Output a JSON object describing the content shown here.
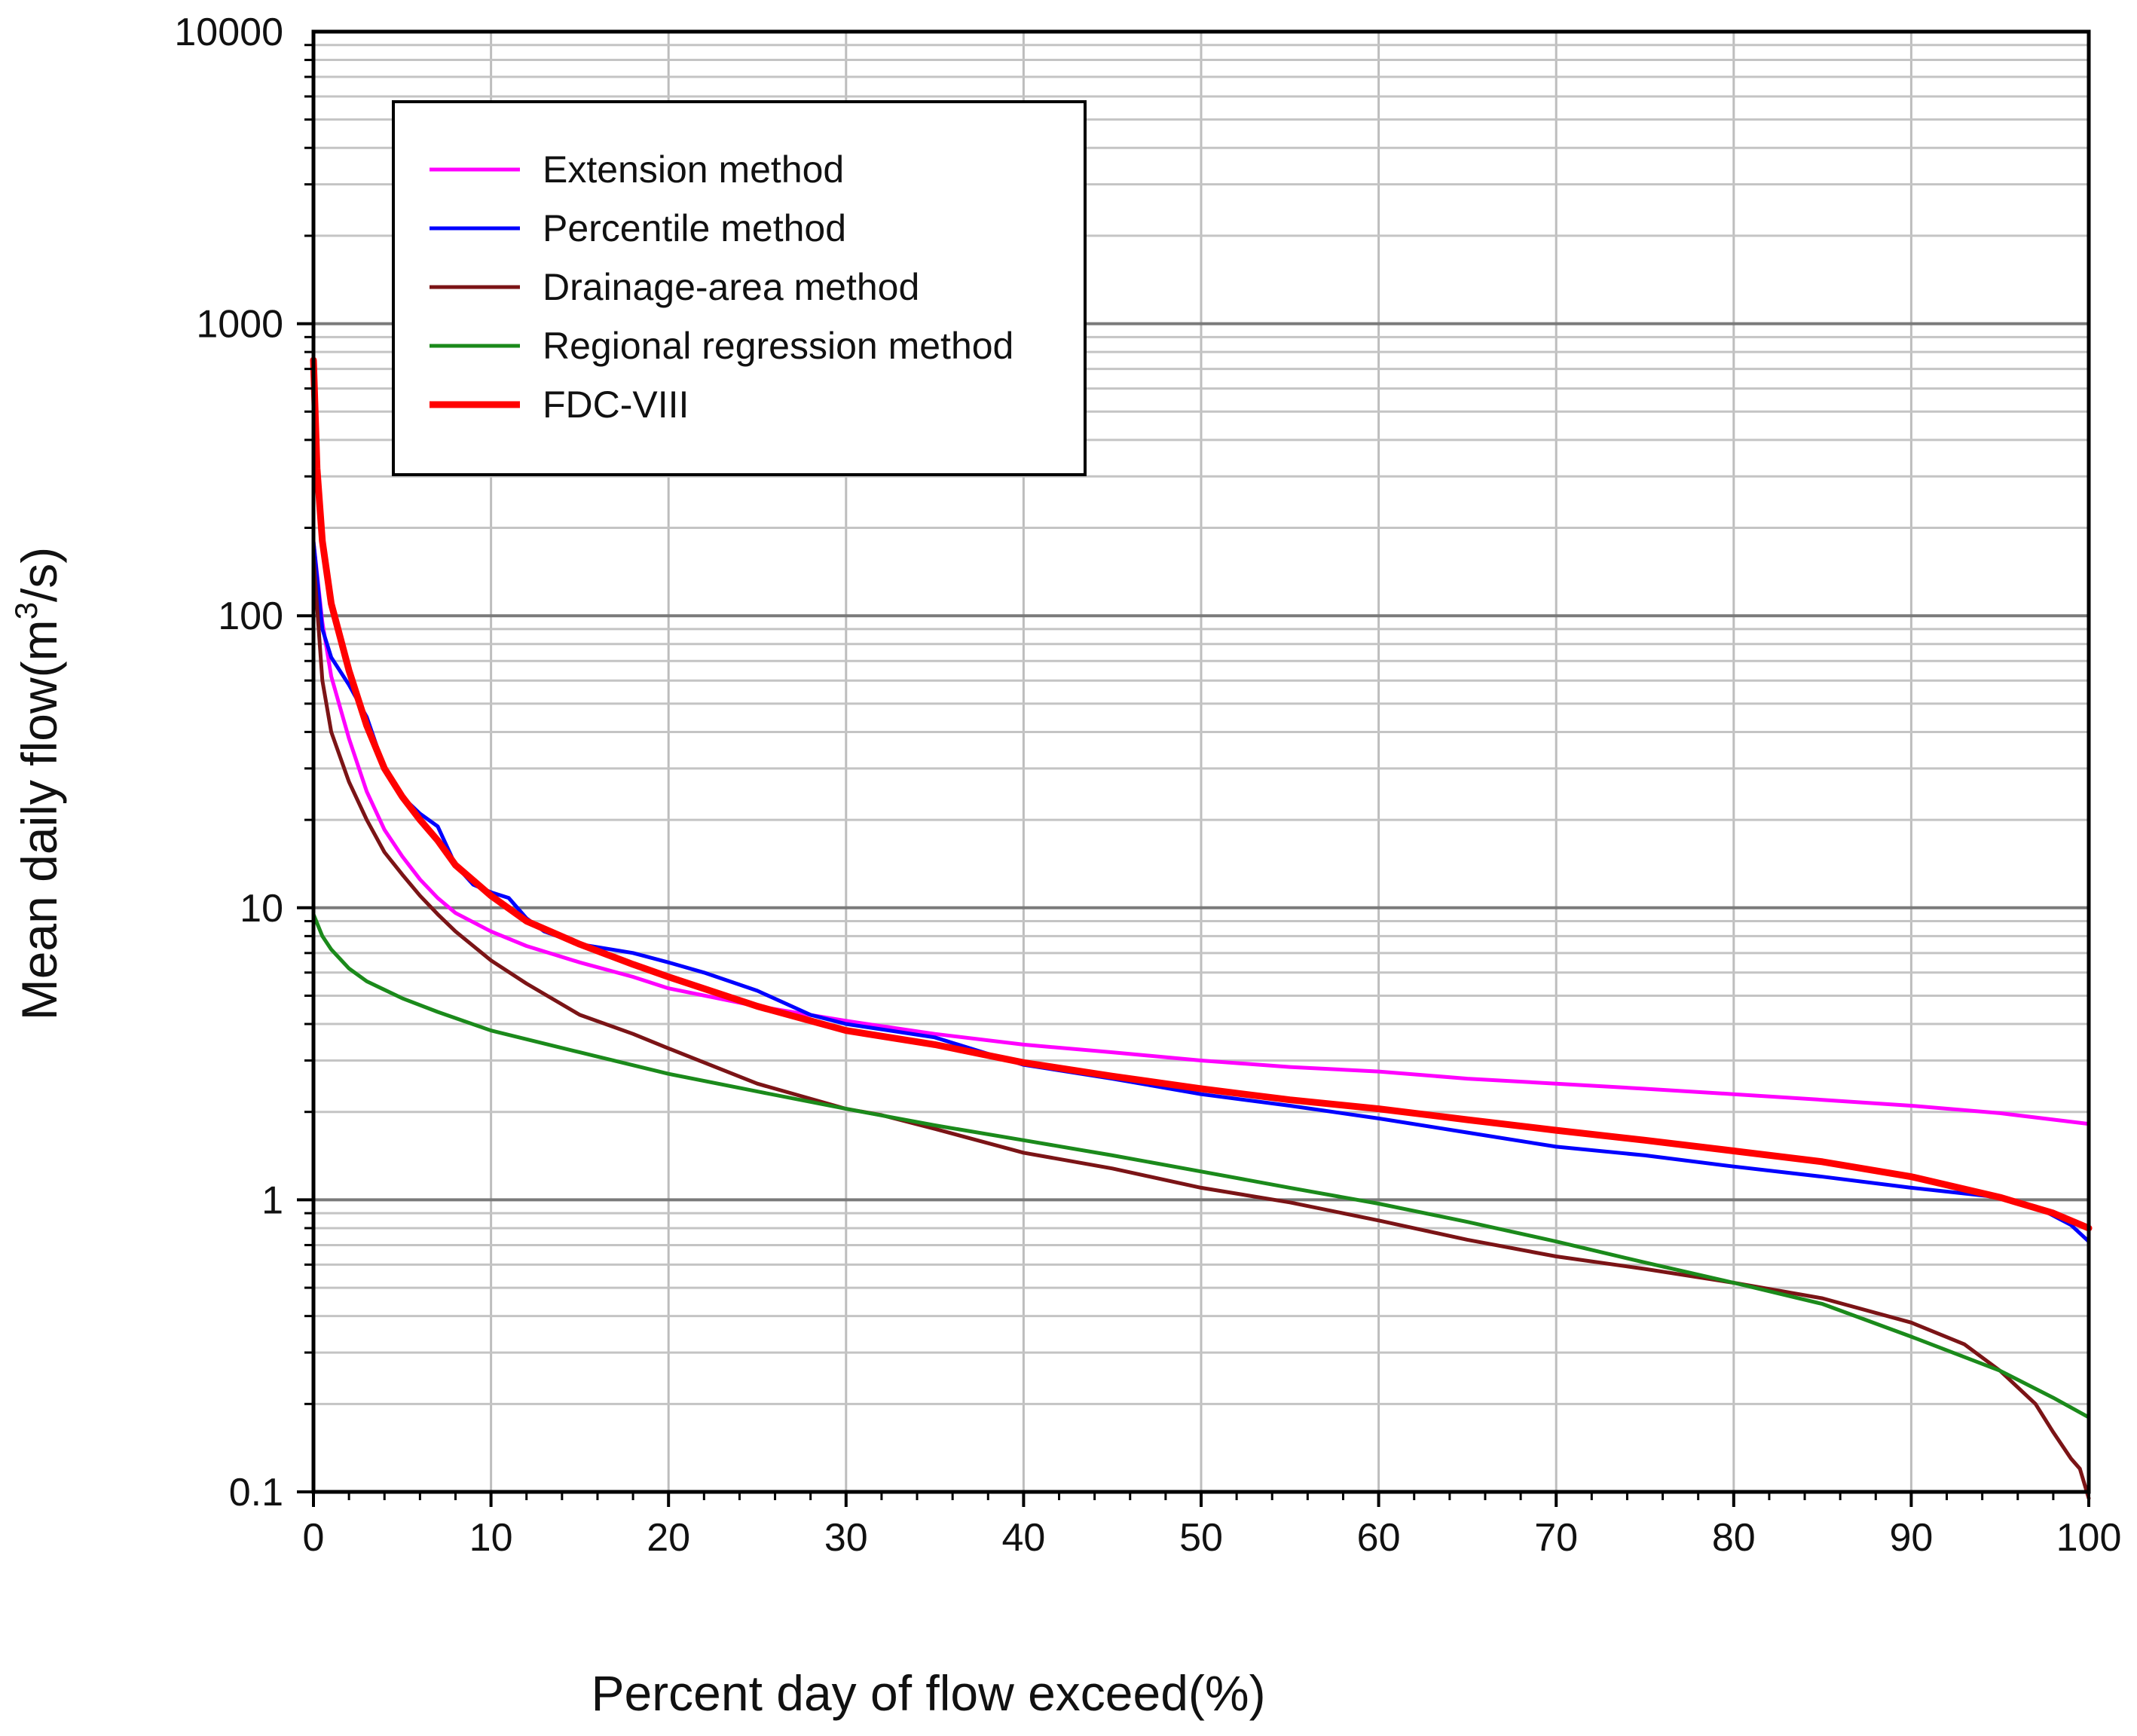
{
  "chart_data": {
    "type": "line",
    "title": "",
    "xlabel": "Percent day of flow exceed(%)",
    "ylabel_main": "Mean daily flow(m",
    "ylabel_sup": "3",
    "ylabel_tail": "/s)",
    "xlim": [
      0,
      100
    ],
    "ylim": [
      0.1,
      10000
    ],
    "yscale": "log",
    "grid": true,
    "legend_position": "upper-left",
    "x_ticks": [
      "0",
      "10",
      "20",
      "30",
      "40",
      "50",
      "60",
      "70",
      "80",
      "90",
      "100"
    ],
    "y_ticks": [
      "0.1",
      "1",
      "10",
      "100",
      "1000",
      "10000"
    ],
    "series": [
      {
        "name": "Extension method",
        "color": "#ff00ff",
        "points": [
          [
            0,
            180
          ],
          [
            0.5,
            95
          ],
          [
            1,
            62
          ],
          [
            2,
            38
          ],
          [
            3,
            25
          ],
          [
            4,
            18.5
          ],
          [
            5,
            15
          ],
          [
            6,
            12.5
          ],
          [
            7,
            10.8
          ],
          [
            8,
            9.6
          ],
          [
            10,
            8.3
          ],
          [
            12,
            7.4
          ],
          [
            15,
            6.5
          ],
          [
            18,
            5.8
          ],
          [
            20,
            5.3
          ],
          [
            25,
            4.6
          ],
          [
            30,
            4.1
          ],
          [
            35,
            3.7
          ],
          [
            40,
            3.4
          ],
          [
            45,
            3.2
          ],
          [
            50,
            3.0
          ],
          [
            55,
            2.85
          ],
          [
            60,
            2.75
          ],
          [
            65,
            2.6
          ],
          [
            70,
            2.5
          ],
          [
            75,
            2.4
          ],
          [
            80,
            2.3
          ],
          [
            85,
            2.2
          ],
          [
            90,
            2.1
          ],
          [
            95,
            1.98
          ],
          [
            100,
            1.82
          ]
        ]
      },
      {
        "name": "Percentile method",
        "color": "#0000ff",
        "points": [
          [
            0,
            180
          ],
          [
            0.5,
            90
          ],
          [
            1,
            72
          ],
          [
            2,
            58
          ],
          [
            3,
            45
          ],
          [
            4,
            30
          ],
          [
            5,
            24
          ],
          [
            6,
            21
          ],
          [
            7,
            19
          ],
          [
            8,
            14
          ],
          [
            9,
            12
          ],
          [
            10,
            11.3
          ],
          [
            11,
            10.8
          ],
          [
            12,
            9.2
          ],
          [
            13,
            8.3
          ],
          [
            15,
            7.5
          ],
          [
            18,
            7.0
          ],
          [
            20,
            6.5
          ],
          [
            22,
            6.0
          ],
          [
            25,
            5.2
          ],
          [
            28,
            4.3
          ],
          [
            30,
            4.0
          ],
          [
            35,
            3.6
          ],
          [
            37,
            3.3
          ],
          [
            40,
            2.9
          ],
          [
            45,
            2.6
          ],
          [
            50,
            2.3
          ],
          [
            55,
            2.1
          ],
          [
            60,
            1.9
          ],
          [
            65,
            1.7
          ],
          [
            70,
            1.52
          ],
          [
            75,
            1.42
          ],
          [
            80,
            1.3
          ],
          [
            85,
            1.2
          ],
          [
            90,
            1.1
          ],
          [
            95,
            1.02
          ],
          [
            97,
            0.95
          ],
          [
            99,
            0.82
          ],
          [
            100,
            0.72
          ]
        ]
      },
      {
        "name": "Drainage-area method",
        "color": "#7b1416",
        "points": [
          [
            0,
            160
          ],
          [
            0.5,
            60
          ],
          [
            1,
            40
          ],
          [
            2,
            27
          ],
          [
            3,
            20
          ],
          [
            4,
            15.5
          ],
          [
            5,
            13
          ],
          [
            6,
            11
          ],
          [
            7,
            9.5
          ],
          [
            8,
            8.3
          ],
          [
            10,
            6.6
          ],
          [
            12,
            5.5
          ],
          [
            15,
            4.3
          ],
          [
            18,
            3.7
          ],
          [
            20,
            3.3
          ],
          [
            25,
            2.5
          ],
          [
            30,
            2.05
          ],
          [
            32,
            1.95
          ],
          [
            35,
            1.75
          ],
          [
            40,
            1.45
          ],
          [
            45,
            1.28
          ],
          [
            50,
            1.1
          ],
          [
            55,
            0.98
          ],
          [
            60,
            0.85
          ],
          [
            65,
            0.73
          ],
          [
            70,
            0.64
          ],
          [
            75,
            0.58
          ],
          [
            80,
            0.52
          ],
          [
            85,
            0.46
          ],
          [
            90,
            0.38
          ],
          [
            93,
            0.32
          ],
          [
            95,
            0.26
          ],
          [
            97,
            0.2
          ],
          [
            98,
            0.16
          ],
          [
            99,
            0.13
          ],
          [
            99.5,
            0.12
          ],
          [
            100,
            0.095
          ]
        ]
      },
      {
        "name": "Regional regression method",
        "color": "#1b8a1b",
        "points": [
          [
            0,
            9.5
          ],
          [
            0.5,
            8.0
          ],
          [
            1,
            7.2
          ],
          [
            2,
            6.2
          ],
          [
            3,
            5.6
          ],
          [
            5,
            4.9
          ],
          [
            7,
            4.4
          ],
          [
            10,
            3.8
          ],
          [
            15,
            3.2
          ],
          [
            20,
            2.7
          ],
          [
            25,
            2.35
          ],
          [
            30,
            2.05
          ],
          [
            35,
            1.8
          ],
          [
            40,
            1.6
          ],
          [
            45,
            1.42
          ],
          [
            50,
            1.25
          ],
          [
            55,
            1.1
          ],
          [
            60,
            0.97
          ],
          [
            65,
            0.84
          ],
          [
            70,
            0.72
          ],
          [
            75,
            0.61
          ],
          [
            80,
            0.52
          ],
          [
            85,
            0.44
          ],
          [
            90,
            0.34
          ],
          [
            95,
            0.26
          ],
          [
            98,
            0.21
          ],
          [
            100,
            0.18
          ]
        ]
      },
      {
        "name": "FDC-VIII",
        "color": "#ff0000",
        "points": [
          [
            0,
            750
          ],
          [
            0.2,
            320
          ],
          [
            0.5,
            180
          ],
          [
            1,
            110
          ],
          [
            2,
            65
          ],
          [
            3,
            42
          ],
          [
            4,
            30
          ],
          [
            5,
            24
          ],
          [
            6,
            20
          ],
          [
            7,
            17
          ],
          [
            8,
            14
          ],
          [
            10,
            11
          ],
          [
            12,
            9
          ],
          [
            15,
            7.5
          ],
          [
            18,
            6.4
          ],
          [
            20,
            5.8
          ],
          [
            25,
            4.6
          ],
          [
            30,
            3.8
          ],
          [
            35,
            3.4
          ],
          [
            40,
            2.95
          ],
          [
            45,
            2.65
          ],
          [
            50,
            2.4
          ],
          [
            55,
            2.2
          ],
          [
            60,
            2.05
          ],
          [
            65,
            1.88
          ],
          [
            70,
            1.73
          ],
          [
            75,
            1.6
          ],
          [
            80,
            1.47
          ],
          [
            85,
            1.35
          ],
          [
            90,
            1.2
          ],
          [
            95,
            1.02
          ],
          [
            98,
            0.9
          ],
          [
            100,
            0.8
          ]
        ]
      }
    ]
  }
}
